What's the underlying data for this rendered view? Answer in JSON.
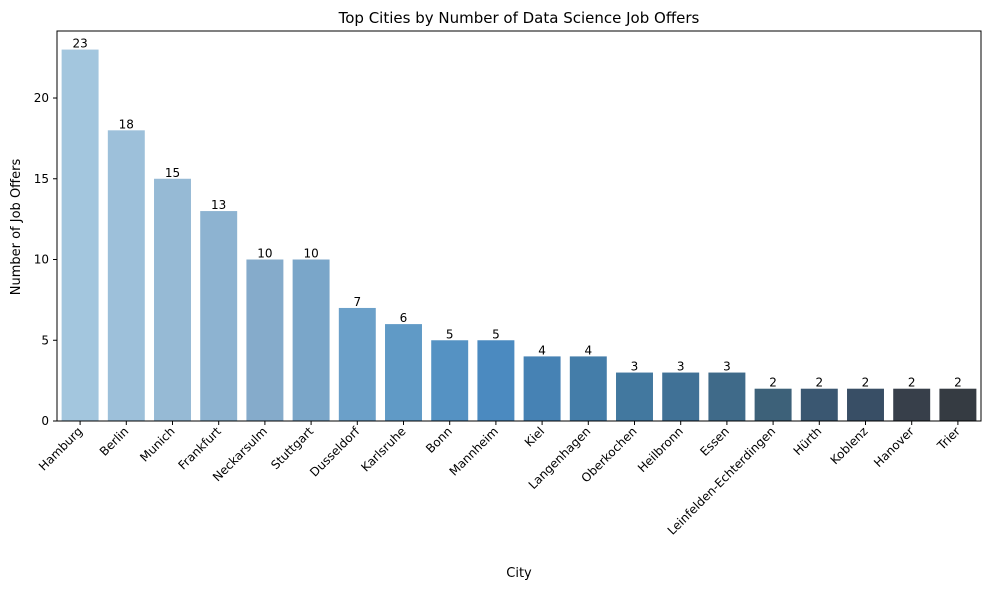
{
  "chart_data": {
    "type": "bar",
    "title": "Top Cities by Number of Data Science Job Offers",
    "xlabel": "City",
    "ylabel": "Number of Job Offers",
    "categories": [
      "Hamburg",
      "Berlin",
      "Munich",
      "Frankfurt",
      "Neckarsulm",
      "Stuttgart",
      "Dusseldorf",
      "Karlsruhe",
      "Bonn",
      "Mannheim",
      "Kiel",
      "Langenhagen",
      "Oberkochen",
      "Heilbronn",
      "Essen",
      "Leinfelden-Echterdingen",
      "Hürth",
      "Koblenz",
      "Hanover",
      "Trier"
    ],
    "values": [
      23,
      18,
      15,
      13,
      10,
      10,
      7,
      6,
      5,
      5,
      4,
      4,
      3,
      3,
      3,
      2,
      2,
      2,
      2,
      2
    ],
    "ylim": [
      0,
      24.15
    ],
    "yticks": [
      0,
      5,
      10,
      15,
      20
    ],
    "grid": false,
    "colors": [
      "#a3c6de",
      "#9dc0da",
      "#96bad5",
      "#8db3d1",
      "#85abcb",
      "#7aa6c9",
      "#6ba0c9",
      "#609ac6",
      "#5592c3",
      "#4b8ac0",
      "#4682b4",
      "#447da9",
      "#42789f",
      "#407196",
      "#3f6a89",
      "#3d6179",
      "#3a5771",
      "#384e65",
      "#373f4a",
      "#353b42"
    ],
    "bar_labels": [
      "23",
      "18",
      "15",
      "13",
      "10",
      "10",
      "7",
      "6",
      "5",
      "5",
      "4",
      "4",
      "3",
      "3",
      "3",
      "2",
      "2",
      "2",
      "2",
      "2"
    ]
  }
}
